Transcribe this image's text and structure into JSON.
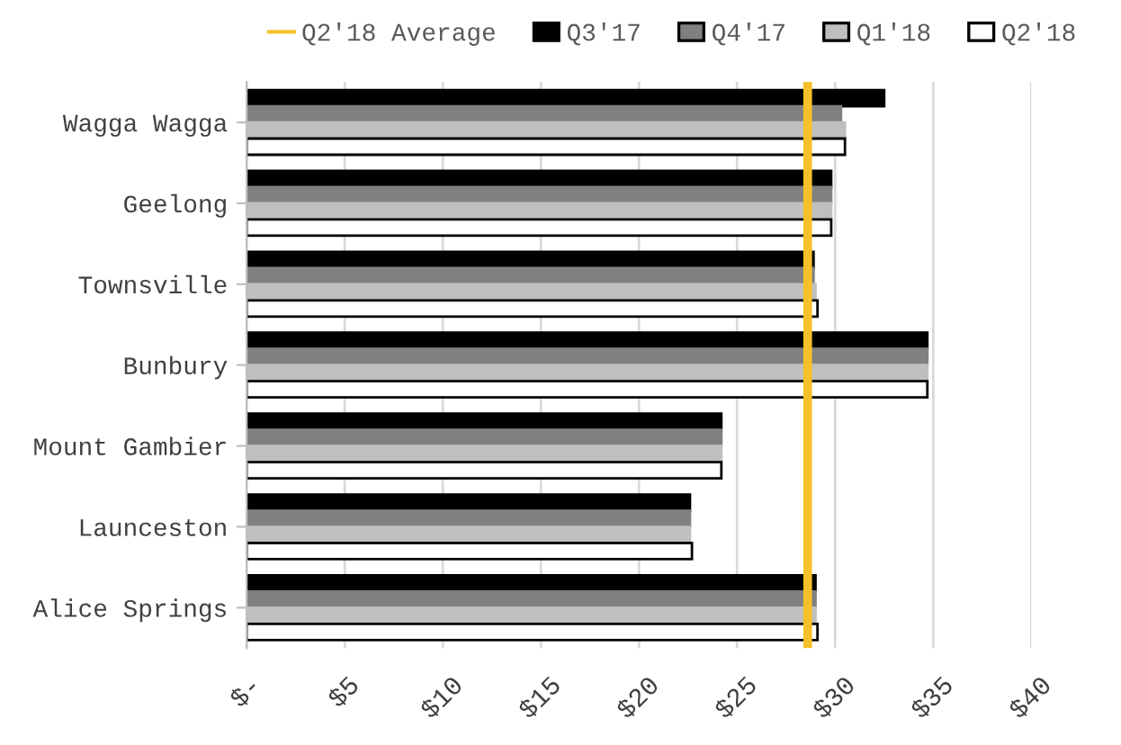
{
  "chart_data": {
    "type": "bar",
    "orientation": "horizontal",
    "categories": [
      "Wagga Wagga",
      "Geelong",
      "Townsville",
      "Bunbury",
      "Mount Gambier",
      "Launceston",
      "Alice Springs"
    ],
    "series": [
      {
        "name": "Q3'17",
        "color": "#000000",
        "values": [
          32.5,
          29.8,
          28.9,
          34.7,
          24.2,
          22.6,
          29.0
        ]
      },
      {
        "name": "Q4'17",
        "color": "#808080",
        "values": [
          30.3,
          29.8,
          28.9,
          34.7,
          24.2,
          22.6,
          29.0
        ]
      },
      {
        "name": "Q1'18",
        "color": "#bfbfbf",
        "values": [
          30.5,
          29.8,
          29.0,
          34.7,
          24.2,
          22.6,
          29.0
        ]
      },
      {
        "name": "Q2'18",
        "color": "#ffffff",
        "values": [
          30.5,
          29.8,
          29.1,
          34.7,
          24.2,
          22.7,
          29.1
        ]
      }
    ],
    "xlim": [
      0,
      40
    ],
    "xticks": [
      {
        "value": 0,
        "label": "$-"
      },
      {
        "value": 5,
        "label": "$5"
      },
      {
        "value": 10,
        "label": "$10"
      },
      {
        "value": 15,
        "label": "$15"
      },
      {
        "value": 20,
        "label": "$20"
      },
      {
        "value": 25,
        "label": "$25"
      },
      {
        "value": 30,
        "label": "$30"
      },
      {
        "value": 35,
        "label": "$35"
      },
      {
        "value": 40,
        "label": "$40"
      }
    ],
    "ref_lines": [
      {
        "axis": "x",
        "value": 28.6,
        "label": "Q2'18 Average",
        "color": "#f5c02c"
      }
    ],
    "grid": "x",
    "legend": "top"
  }
}
